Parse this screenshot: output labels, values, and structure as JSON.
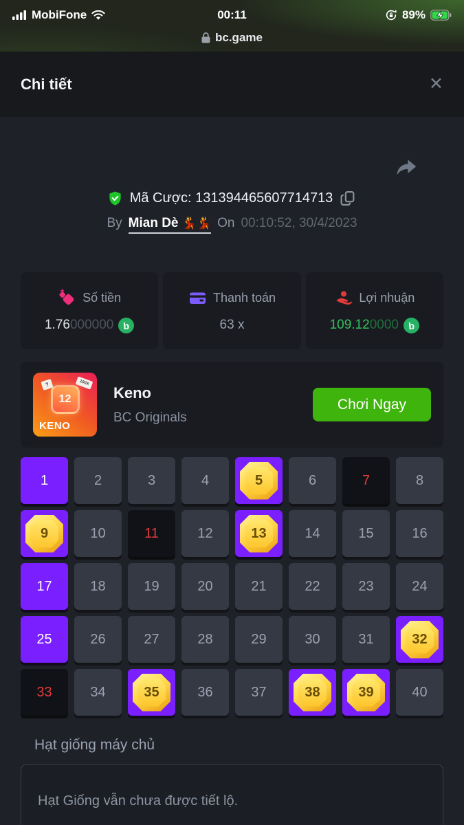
{
  "status_bar": {
    "carrier": "MobiFone",
    "time": "00:11",
    "battery_percent": "89%",
    "url": "bc.game"
  },
  "header": {
    "title": "Chi tiết",
    "close_icon": "✕"
  },
  "bet_info": {
    "bet_id_label": "Mã Cược:",
    "bet_id": "131394465607714713",
    "by_label": "By",
    "player_name": "Mian Dè",
    "player_emojis": "💃💃",
    "on_label": "On",
    "datetime": "00:10:52, 30/4/2023"
  },
  "stats": [
    {
      "label": "Số tiền",
      "value_main": "1.76",
      "value_dim": "000000",
      "has_coin": true
    },
    {
      "label": "Thanh toán",
      "value_main": "63 x",
      "value_dim": "",
      "has_coin": false
    },
    {
      "label": "Lợi nhuận",
      "value_main": "109.12",
      "value_dim": "0000",
      "has_coin": true
    }
  ],
  "coin_letter": "b",
  "game_banner": {
    "name": "Keno",
    "provider": "BC Originals",
    "play_button": "Chơi Ngay",
    "thumb_label": "KENO",
    "thumb_number": "12",
    "thumb_tag1": "?",
    "thumb_tag2": "100X"
  },
  "keno": {
    "total": 40,
    "selected": [
      1,
      17,
      25
    ],
    "hits": [
      5,
      9,
      13,
      32,
      35,
      38,
      39
    ],
    "drawn_missed": [
      7,
      11,
      33
    ]
  },
  "seed": {
    "label": "Hạt giống máy chủ",
    "value": "Hạt Giống vẫn chưa được tiết lộ."
  },
  "colors": {
    "accent_purple": "#7a1fff",
    "gem_gold": "#ffd23e",
    "profit_green": "#35c05e",
    "button_green": "#3eb40c",
    "coin_green": "#27b163",
    "miss_red": "#e23c3c",
    "amount_pink": "#ee2d7b",
    "payout_purple": "#7c5cff",
    "profit_icon_red": "#e23b3b",
    "shield_green": "#1fc32a"
  }
}
